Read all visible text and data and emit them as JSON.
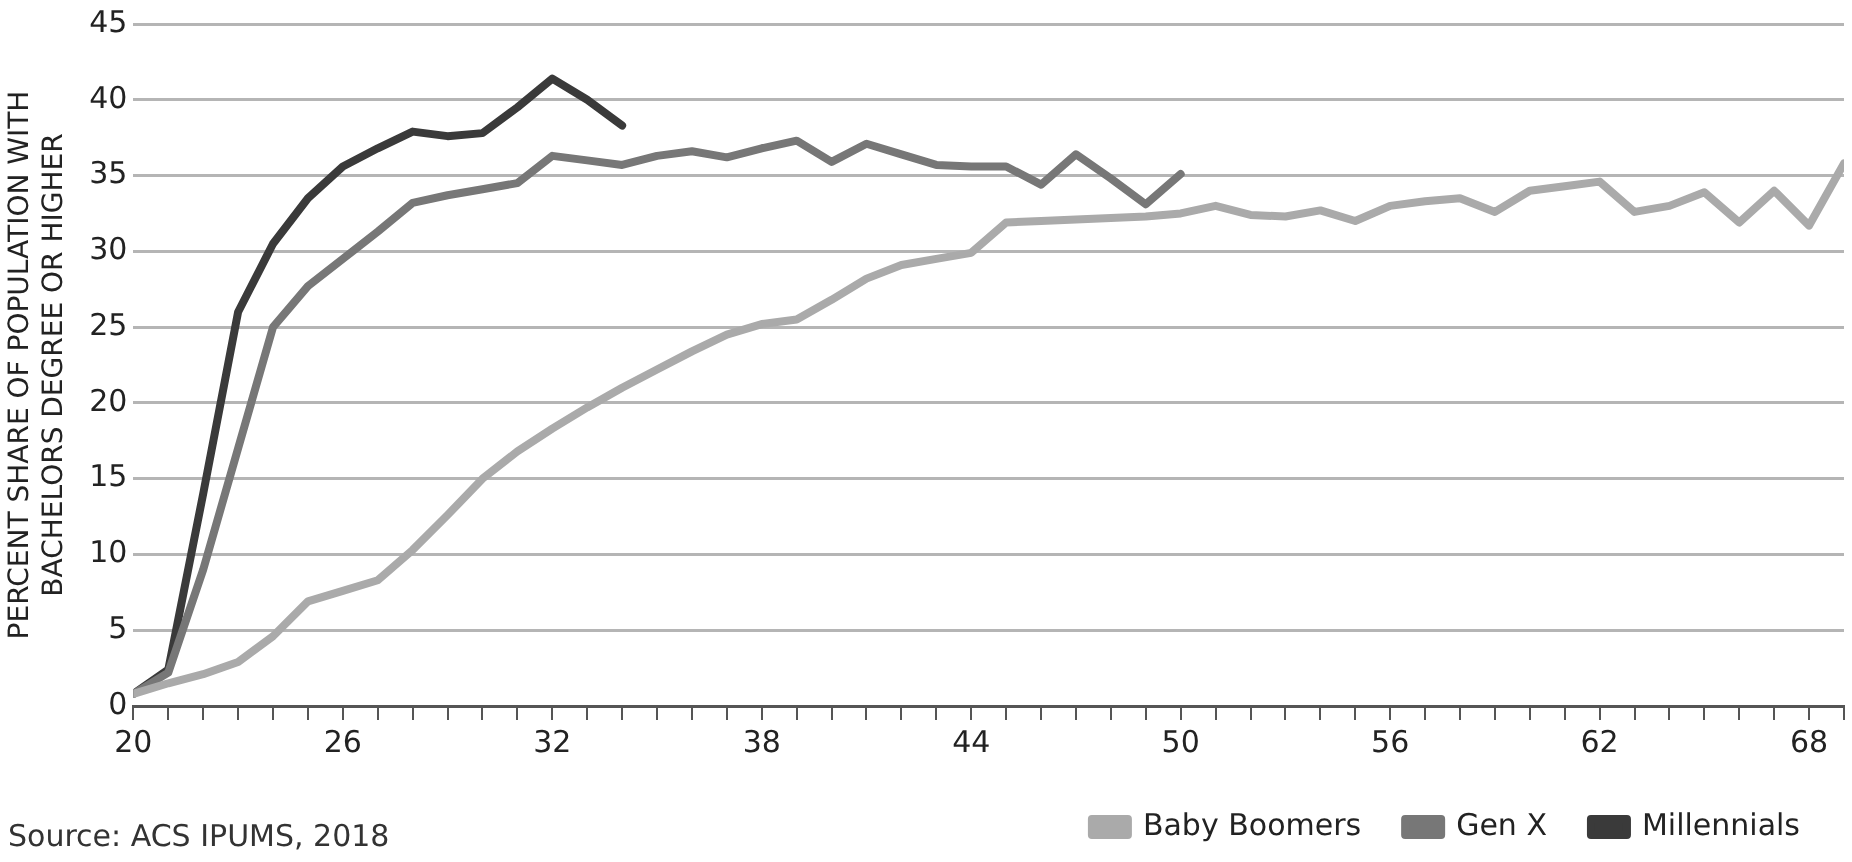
{
  "chart_data": {
    "type": "line",
    "ylabel": "PERCENT SHARE OF POPULATION WITH\nBACHELORS DEGREE OR HIGHER",
    "annotations": [
      "Source: ACS IPUMS, 2018"
    ],
    "xlim": [
      20,
      69
    ],
    "ylim": [
      0,
      45
    ],
    "yticks": [
      0,
      5,
      10,
      15,
      20,
      25,
      30,
      35,
      40,
      45
    ],
    "xticks": [
      20,
      {
        "value": 21,
        "label": null
      },
      {
        "value": 22,
        "label": null
      },
      {
        "value": 23,
        "label": null
      },
      {
        "value": 24,
        "label": null
      },
      {
        "value": 25,
        "label": null
      },
      26,
      {
        "value": 27,
        "label": null
      },
      {
        "value": 28,
        "label": null
      },
      {
        "value": 29,
        "label": null
      },
      {
        "value": 30,
        "label": null
      },
      {
        "value": 31,
        "label": null
      },
      32,
      {
        "value": 33,
        "label": null
      },
      {
        "value": 34,
        "label": null
      },
      {
        "value": 35,
        "label": null
      },
      {
        "value": 36,
        "label": null
      },
      {
        "value": 37,
        "label": null
      },
      38,
      {
        "value": 39,
        "label": null
      },
      {
        "value": 40,
        "label": null
      },
      {
        "value": 41,
        "label": null
      },
      {
        "value": 42,
        "label": null
      },
      {
        "value": 43,
        "label": null
      },
      44,
      {
        "value": 45,
        "label": null
      },
      {
        "value": 46,
        "label": null
      },
      {
        "value": 47,
        "label": null
      },
      {
        "value": 48,
        "label": null
      },
      {
        "value": 49,
        "label": null
      },
      50,
      {
        "value": 51,
        "label": null
      },
      {
        "value": 52,
        "label": null
      },
      {
        "value": 53,
        "label": null
      },
      {
        "value": 54,
        "label": null
      },
      {
        "value": 55,
        "label": null
      },
      56,
      {
        "value": 57,
        "label": null
      },
      {
        "value": 58,
        "label": null
      },
      {
        "value": 59,
        "label": null
      },
      {
        "value": 60,
        "label": null
      },
      {
        "value": 61,
        "label": null
      },
      62,
      {
        "value": 63,
        "label": null
      },
      {
        "value": 64,
        "label": null
      },
      {
        "value": 65,
        "label": null
      },
      {
        "value": 66,
        "label": null
      },
      {
        "value": 67,
        "label": null
      },
      68,
      {
        "value": 69,
        "label": null
      }
    ],
    "grid": "y",
    "legend": "bottom right",
    "marker": "none",
    "line_style": "solid",
    "series": [
      {
        "name": "Baby Boomers",
        "color": "#aaaaaa",
        "x": [
          20,
          21,
          22,
          23,
          24,
          25,
          26,
          27,
          28,
          29,
          30,
          31,
          32,
          33,
          34,
          35,
          36,
          37,
          38,
          39,
          40,
          41,
          42,
          43,
          44,
          45,
          46,
          47,
          48,
          49,
          50,
          51,
          52,
          53,
          54,
          55,
          56,
          57,
          58,
          59,
          60,
          61,
          62,
          63,
          64,
          65,
          66,
          67,
          68,
          69
        ],
        "values": [
          0.8,
          1.5,
          2.1,
          2.9,
          4.6,
          6.9,
          7.6,
          8.3,
          10.3,
          12.6,
          15,
          16.8,
          18.3,
          19.7,
          21,
          22.2,
          23.4,
          24.5,
          25.2,
          25.5,
          26.8,
          28.2,
          29.1,
          29.5,
          29.9,
          31.9,
          32,
          32.1,
          32.2,
          32.3,
          32.5,
          33,
          32.4,
          32.3,
          32.7,
          32,
          33,
          33.3,
          33.5,
          32.6,
          34,
          34.3,
          34.6,
          32.6,
          33,
          33.9,
          31.9,
          34,
          31.7,
          35.8
        ]
      },
      {
        "name": "Gen X",
        "color": "#777777",
        "x": [
          20,
          21,
          22,
          23,
          24,
          25,
          26,
          27,
          28,
          29,
          30,
          31,
          32,
          33,
          34,
          35,
          36,
          37,
          38,
          39,
          40,
          41,
          42,
          43,
          44,
          45,
          46,
          47,
          48,
          49,
          50
        ],
        "values": [
          0.8,
          2.2,
          9,
          17,
          25,
          27.7,
          29.5,
          31.3,
          33.2,
          33.7,
          34.1,
          34.5,
          36.3,
          36,
          35.7,
          36.3,
          36.6,
          36.2,
          36.8,
          37.3,
          35.9,
          37.1,
          36.4,
          35.7,
          35.6,
          35.6,
          34.4,
          36.4,
          34.8,
          33.1,
          35.1
        ]
      },
      {
        "name": "Millennials",
        "color": "#3a3a3a",
        "x": [
          20,
          21,
          22,
          23,
          24,
          25,
          26,
          27,
          28,
          29,
          30,
          31,
          32,
          33,
          34
        ],
        "values": [
          0.8,
          2.4,
          14,
          26,
          30.5,
          33.5,
          35.6,
          36.8,
          37.9,
          37.6,
          37.8,
          39.5,
          41.4,
          40,
          38.3
        ]
      }
    ]
  }
}
